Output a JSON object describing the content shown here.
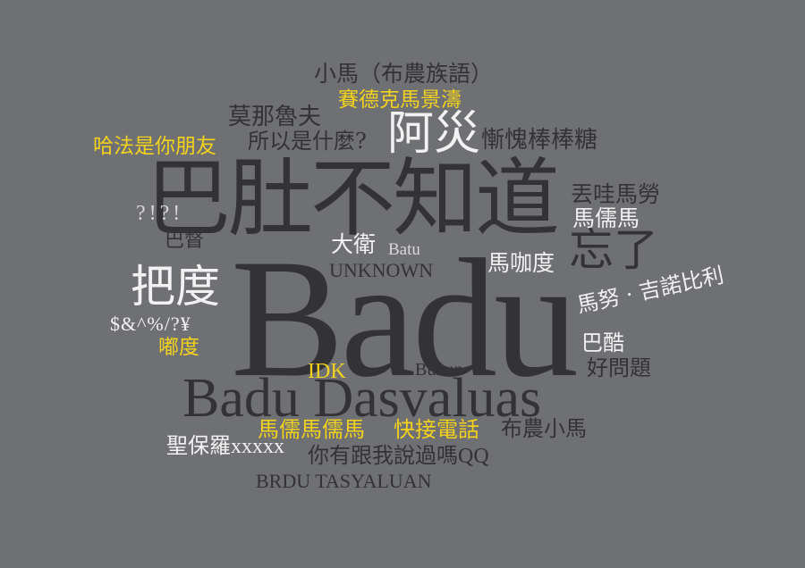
{
  "words": {
    "xiaoma_bunun_lang": "小馬（布農族語）",
    "saidek_mating_tao": "賽德克馬景濤",
    "mo_na_lu_fu": "莫那魯夫",
    "hafa_friend": "哈法是你朋友",
    "so_what_is_it": "所以是什麼?",
    "a_zai": "阿災",
    "ashamed_lollipop": "慚愧棒棒糖",
    "badu_dont_know": "巴肚不知道",
    "diu_wa_ma_lao": "丟哇馬勞",
    "ma_ru_ma": "馬儒馬",
    "punct_qe": "?!?!",
    "ba_du_2": "巴督",
    "da_wei": "大衛",
    "batu": "Batu",
    "unknown": "UNKNOWN",
    "ma_ka_du": "馬咖度",
    "forgot": "忘了",
    "ba_du_hold": "把度",
    "badu_big": "Badu",
    "ma_nu_gino": "馬努 · 吉諾比利",
    "symbols": "$&^%/?¥",
    "du_du": "嘟度",
    "ba_ku": "巴酷",
    "good_question": "好問題",
    "bunun": "Bunun",
    "idk": "IDK",
    "badu_dasvaluas": "Badu Dasvaluas",
    "ma_ru_ma_ru_ma": "馬儒馬儒馬",
    "answer_phone": "快接電話",
    "bunun_xiaoma": "布農小馬",
    "saint_paul": "聖保羅xxxxx",
    "ever_said": "你有跟我說過嗎QQ",
    "brdu_tasyaluan": "BRDU TASYALUAN"
  },
  "colors": {
    "background": "#6f7074",
    "dark": "#333335",
    "white": "#f2f2f2",
    "yellow": "#f2d21d"
  }
}
